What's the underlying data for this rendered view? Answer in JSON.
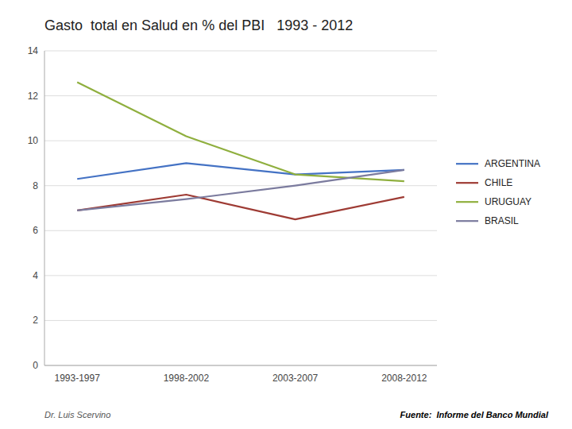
{
  "chart_data": {
    "type": "line",
    "title": "Gasto  total en Salud en % del PBI   1993 - 2012",
    "categories": [
      "1993-1997",
      "1998-2002",
      "2003-2007",
      "2008-2012"
    ],
    "series": [
      {
        "name": "ARGENTINA",
        "color": "#4472C4",
        "values": [
          8.3,
          9.0,
          8.5,
          8.7
        ]
      },
      {
        "name": "CHILE",
        "color": "#9E3B34",
        "values": [
          6.9,
          7.6,
          6.5,
          7.5
        ]
      },
      {
        "name": "URUGUAY",
        "color": "#8FAF3E",
        "values": [
          12.6,
          10.2,
          8.5,
          8.2
        ]
      },
      {
        "name": "BRASIL",
        "color": "#7B7B9E",
        "values": [
          6.9,
          7.4,
          8.0,
          8.7
        ]
      }
    ],
    "ylim": [
      0,
      14
    ],
    "yticks": [
      0,
      2,
      4,
      6,
      8,
      10,
      12,
      14
    ],
    "grid": true,
    "legend": "right",
    "annotations": [
      "Dr. Luis Scervino",
      "Fuente:  Informe del Banco Mundial"
    ]
  }
}
